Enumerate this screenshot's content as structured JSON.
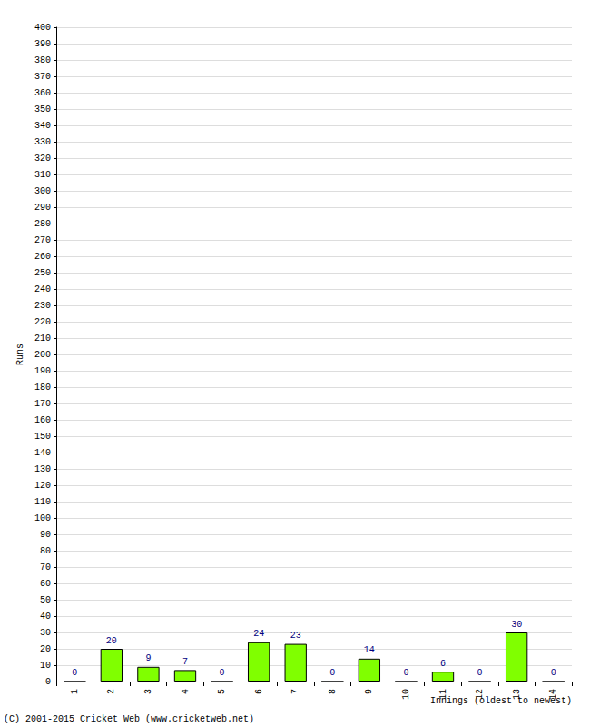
{
  "chart_data": {
    "type": "bar",
    "categories": [
      "1",
      "2",
      "3",
      "4",
      "5",
      "6",
      "7",
      "8",
      "9",
      "10",
      "11",
      "12",
      "13",
      "14"
    ],
    "values": [
      0,
      20,
      9,
      7,
      0,
      24,
      23,
      0,
      14,
      0,
      6,
      0,
      30,
      0
    ],
    "color": "#80ff00",
    "x_label": "Innings (oldest to newest)",
    "y_label": "Runs",
    "ylim": [
      0,
      400
    ],
    "yticks": [
      0,
      10,
      20,
      30,
      40,
      50,
      60,
      70,
      80,
      90,
      100,
      110,
      120,
      130,
      140,
      150,
      160,
      170,
      180,
      190,
      200,
      210,
      220,
      230,
      240,
      250,
      260,
      270,
      280,
      290,
      300,
      310,
      320,
      330,
      340,
      350,
      360,
      370,
      380,
      390,
      400
    ],
    "grid": true,
    "data_labels": true,
    "annotations": [
      "(C) 2001-2015 Cricket Web (www.cricketweb.net)"
    ]
  }
}
